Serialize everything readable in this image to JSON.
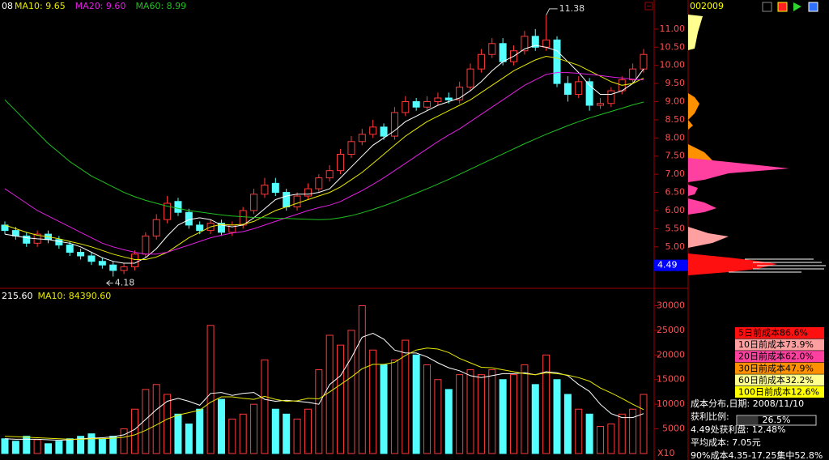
{
  "chart_data": {
    "type": "candlestick",
    "header": {
      "prefix": "08",
      "ma": [
        "MA10: 9.65",
        "MA20: 9.60",
        "MA60: 8.99"
      ]
    },
    "up_color": "#ff3a3a",
    "down_color": "#54ffff",
    "open": [
      5.6,
      5.45,
      5.3,
      5.1,
      5.35,
      5.2,
      5.05,
      4.85,
      4.75,
      4.6,
      4.5,
      4.35,
      4.45,
      4.8,
      5.3,
      5.75,
      6.25,
      5.95,
      5.6,
      5.45,
      5.65,
      5.4,
      5.6,
      6.0,
      6.45,
      6.75,
      6.5,
      6.1,
      6.4,
      6.6,
      6.9,
      7.1,
      7.55,
      7.9,
      8.1,
      8.3,
      8.05,
      8.7,
      9.0,
      8.85,
      9.0,
      9.1,
      9.05,
      9.4,
      9.9,
      10.3,
      10.6,
      10.1,
      10.4,
      10.8,
      10.5,
      10.7,
      9.5,
      9.2,
      9.55,
      8.9,
      8.95,
      9.3,
      9.6,
      9.9
    ],
    "high": [
      5.7,
      5.55,
      5.4,
      5.45,
      5.45,
      5.3,
      5.15,
      4.95,
      4.85,
      4.7,
      4.6,
      4.55,
      4.9,
      5.4,
      5.9,
      6.4,
      6.35,
      6.05,
      5.7,
      5.75,
      5.75,
      5.7,
      6.1,
      6.6,
      6.9,
      6.9,
      6.6,
      6.5,
      6.75,
      7.0,
      7.25,
      7.7,
      8.05,
      8.25,
      8.5,
      8.4,
      8.85,
      9.15,
      9.1,
      9.15,
      9.25,
      9.25,
      9.55,
      10.05,
      10.45,
      10.75,
      10.75,
      10.55,
      10.95,
      11.0,
      11.38,
      10.8,
      9.7,
      9.7,
      9.65,
      9.1,
      9.4,
      9.7,
      10.05,
      10.45
    ],
    "low": [
      5.35,
      5.2,
      5.0,
      5.0,
      5.1,
      4.95,
      4.75,
      4.65,
      4.5,
      4.4,
      4.18,
      4.25,
      4.35,
      4.7,
      5.2,
      5.65,
      5.85,
      5.5,
      5.35,
      5.35,
      5.3,
      5.3,
      5.5,
      5.9,
      6.35,
      6.4,
      6.0,
      6.0,
      6.3,
      6.5,
      6.8,
      7.0,
      7.45,
      7.8,
      8.0,
      7.95,
      7.95,
      8.6,
      8.75,
      8.75,
      8.9,
      8.95,
      8.95,
      9.3,
      9.8,
      10.2,
      10.0,
      10.0,
      10.3,
      10.4,
      10.4,
      9.4,
      9.0,
      9.1,
      8.75,
      8.8,
      8.85,
      9.2,
      9.5,
      9.8
    ],
    "close": [
      5.45,
      5.3,
      5.1,
      5.35,
      5.2,
      5.05,
      4.85,
      4.75,
      4.6,
      4.5,
      4.35,
      4.45,
      4.8,
      5.3,
      5.75,
      6.2,
      5.95,
      5.6,
      5.45,
      5.65,
      5.4,
      5.6,
      6.0,
      6.45,
      6.7,
      6.5,
      6.1,
      6.4,
      6.6,
      6.9,
      7.1,
      7.55,
      7.9,
      8.1,
      8.3,
      8.05,
      8.7,
      9.0,
      8.85,
      9.0,
      9.1,
      9.05,
      9.4,
      9.9,
      10.3,
      10.6,
      10.1,
      10.4,
      10.8,
      10.5,
      10.7,
      9.5,
      9.2,
      9.55,
      8.9,
      8.95,
      9.3,
      9.6,
      9.9,
      10.3
    ],
    "ma_lines": [
      {
        "color": "#ffffff",
        "values": [
          5.35,
          5.3,
          5.25,
          5.22,
          5.2,
          5.15,
          5.1,
          5.0,
          4.85,
          4.7,
          4.6,
          4.55,
          4.55,
          4.7,
          4.95,
          5.3,
          5.6,
          5.75,
          5.8,
          5.75,
          5.6,
          5.55,
          5.6,
          5.8,
          6.05,
          6.3,
          6.4,
          6.45,
          6.45,
          6.5,
          6.6,
          6.9,
          7.2,
          7.5,
          7.8,
          8.0,
          8.2,
          8.45,
          8.6,
          8.75,
          8.9,
          9.0,
          9.1,
          9.3,
          9.55,
          9.85,
          10.1,
          10.25,
          10.45,
          10.55,
          10.5,
          10.4,
          10.1,
          9.8,
          9.45,
          9.2,
          9.2,
          9.3,
          9.5,
          9.9
        ]
      },
      {
        "color": "#e8e800",
        "values": [
          5.6,
          5.5,
          5.4,
          5.32,
          5.28,
          5.22,
          5.15,
          5.08,
          5.0,
          4.9,
          4.8,
          4.72,
          4.65,
          4.65,
          4.72,
          4.85,
          5.05,
          5.25,
          5.4,
          5.55,
          5.62,
          5.6,
          5.62,
          5.7,
          5.85,
          6.0,
          6.1,
          6.2,
          6.3,
          6.4,
          6.5,
          6.65,
          6.85,
          7.05,
          7.3,
          7.55,
          7.8,
          8.05,
          8.25,
          8.45,
          8.6,
          8.75,
          8.9,
          9.05,
          9.25,
          9.45,
          9.65,
          9.85,
          10.0,
          10.15,
          10.25,
          10.2,
          10.1,
          10.0,
          9.85,
          9.7,
          9.55,
          9.45,
          9.5,
          9.65
        ]
      },
      {
        "color": "#e020e0",
        "values": [
          6.6,
          6.4,
          6.2,
          6.0,
          5.85,
          5.7,
          5.55,
          5.4,
          5.25,
          5.1,
          5.0,
          4.92,
          4.85,
          4.8,
          4.8,
          4.85,
          4.95,
          5.05,
          5.15,
          5.25,
          5.32,
          5.38,
          5.42,
          5.5,
          5.6,
          5.7,
          5.8,
          5.9,
          6.0,
          6.08,
          6.15,
          6.25,
          6.4,
          6.55,
          6.72,
          6.9,
          7.1,
          7.3,
          7.5,
          7.7,
          7.9,
          8.08,
          8.25,
          8.45,
          8.65,
          8.85,
          9.05,
          9.25,
          9.45,
          9.6,
          9.75,
          9.8,
          9.8,
          9.78,
          9.75,
          9.72,
          9.68,
          9.65,
          9.62,
          9.6
        ]
      },
      {
        "color": "#20c020",
        "values": [
          9.05,
          8.75,
          8.45,
          8.15,
          7.85,
          7.6,
          7.35,
          7.15,
          6.95,
          6.8,
          6.65,
          6.5,
          6.38,
          6.28,
          6.2,
          6.12,
          6.06,
          6.0,
          5.96,
          5.92,
          5.88,
          5.85,
          5.83,
          5.81,
          5.8,
          5.79,
          5.78,
          5.77,
          5.76,
          5.75,
          5.76,
          5.8,
          5.86,
          5.94,
          6.03,
          6.13,
          6.24,
          6.36,
          6.48,
          6.6,
          6.73,
          6.86,
          7.0,
          7.14,
          7.28,
          7.42,
          7.56,
          7.7,
          7.84,
          7.97,
          8.1,
          8.22,
          8.34,
          8.45,
          8.55,
          8.64,
          8.73,
          8.82,
          8.91,
          8.99
        ]
      }
    ],
    "ylim": [
      3.88,
      11.8
    ],
    "yticks": [
      {
        "value": 5,
        "label": "5.00"
      },
      {
        "value": 5.5,
        "label": "5.50"
      },
      {
        "value": 6,
        "label": "6.00"
      },
      {
        "value": 6.5,
        "label": "6.50"
      },
      {
        "value": 7,
        "label": "7.00"
      },
      {
        "value": 7.5,
        "label": "7.50"
      },
      {
        "value": 8,
        "label": "8.00"
      },
      {
        "value": 8.5,
        "label": "8.50"
      },
      {
        "value": 9,
        "label": "9.00"
      },
      {
        "value": 9.5,
        "label": "9.50"
      },
      {
        "value": 10,
        "label": "10.00"
      },
      {
        "value": 10.5,
        "label": "10.50"
      },
      {
        "value": 11,
        "label": "11.00"
      }
    ],
    "volume": {
      "header": {
        "prefix": "215.60",
        "ma": "MA10: 84390.60"
      },
      "values": [
        3000,
        2500,
        3500,
        2800,
        2000,
        2500,
        3000,
        3500,
        4000,
        3000,
        3500,
        5000,
        9000,
        13000,
        14000,
        12000,
        8000,
        6000,
        9000,
        26000,
        11000,
        7000,
        8000,
        10000,
        19000,
        9000,
        8000,
        7000,
        9000,
        17000,
        24000,
        22000,
        25000,
        30000,
        21000,
        18000,
        19000,
        23000,
        20000,
        18000,
        15000,
        13000,
        16000,
        17000,
        16000,
        17000,
        15000,
        16000,
        18000,
        14000,
        20000,
        15000,
        12000,
        9000,
        8000,
        5500,
        6000,
        8000,
        9000,
        12000
      ],
      "ma_lines": [
        {
          "color": "#ffffff",
          "values": [
            3000,
            2900,
            2900,
            2900,
            2800,
            2700,
            2800,
            3000,
            3100,
            3200,
            3400,
            3800,
            4900,
            6900,
            8900,
            10600,
            11200,
            10600,
            9800,
            12200,
            12400,
            11800,
            12200,
            12400,
            11000,
            10600,
            10800,
            10600,
            10400,
            10000,
            14000,
            15800,
            19400,
            23600,
            24400,
            23200,
            21000,
            20400,
            20400,
            19600,
            18400,
            17400,
            16800,
            15800,
            15400,
            15800,
            16200,
            16200,
            16400,
            16000,
            16600,
            16400,
            15800,
            14000,
            12600,
            10000,
            8100,
            7300,
            7300,
            8100
          ]
        },
        {
          "color": "#e8e800",
          "values": [
            3500,
            3400,
            3300,
            3200,
            3100,
            3000,
            2900,
            2900,
            3000,
            3000,
            3100,
            3300,
            3800,
            4700,
            5800,
            7000,
            7800,
            8300,
            8800,
            10400,
            11500,
            11500,
            11200,
            11000,
            11600,
            11000,
            10600,
            10700,
            11200,
            11100,
            12500,
            14000,
            15500,
            17200,
            18100,
            18100,
            18500,
            19900,
            21000,
            21400,
            21200,
            20500,
            19300,
            18400,
            17500,
            17400,
            17000,
            16600,
            16200,
            16000,
            16400,
            16200,
            15900,
            15400,
            14700,
            13300,
            12300,
            11200,
            10000,
            8900
          ]
        }
      ],
      "ylim": [
        0,
        33200
      ],
      "yticks": [
        5000,
        10000,
        15000,
        20000,
        25000,
        30000
      ],
      "unit": "X10"
    }
  },
  "side_panel": {
    "code": "002009",
    "price_label": "4.49",
    "legend": [
      "5日前成本86.6%",
      "10日前成本73.9%",
      "20日前成本62.0%",
      "30日前成本47.9%",
      "60日前成本32.2%",
      "100日前成本12.6%"
    ],
    "legend_colors": [
      "#ff1010",
      "#ffa0a0",
      "#ff40a0",
      "#ff9000",
      "#ffff90",
      "#ffff00"
    ],
    "date_line": "成本分布,日期: 2008/11/10",
    "profit_ratio": {
      "label": "获利比例:",
      "value": 26.5,
      "value_label": "26.5%"
    },
    "lines": [
      "4.49处获利盘: 12.48%",
      "平均成本: 7.05元",
      "90%成本4.35-17.25集中52.8%"
    ]
  }
}
